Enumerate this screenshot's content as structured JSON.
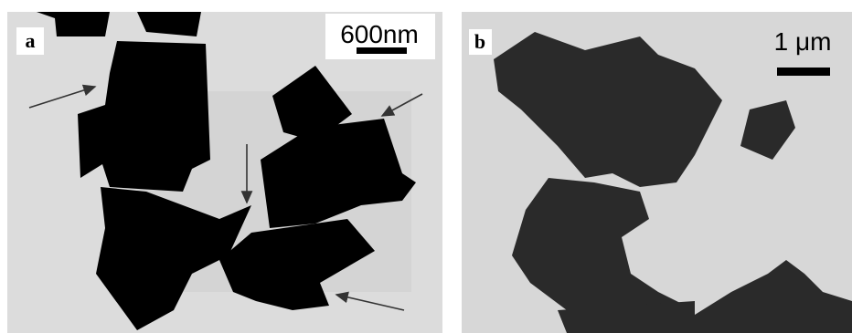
{
  "panels": [
    {
      "label": "a",
      "scale_bar": "600nm"
    },
    {
      "label": "b",
      "scale_bar": "1 μm"
    }
  ]
}
